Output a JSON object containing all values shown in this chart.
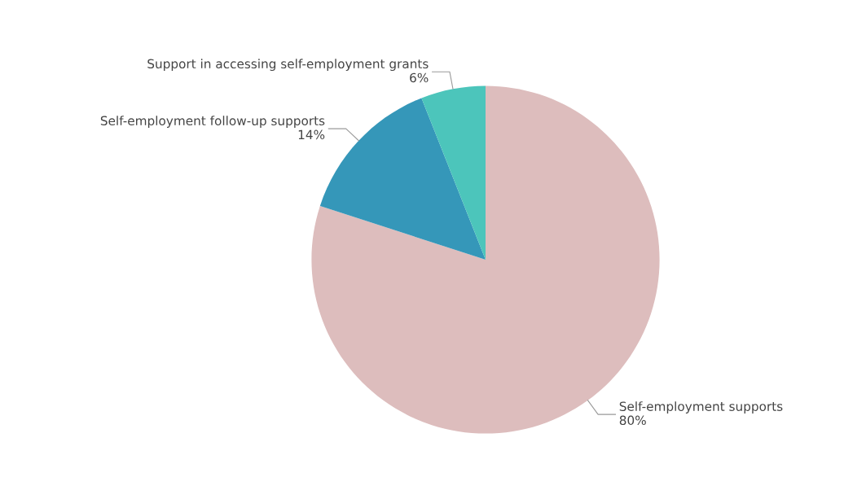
{
  "chart_data": {
    "type": "pie",
    "categories": [
      "Self-employment supports",
      "Self-employment follow-up supports",
      "Support in accessing self-employment grants"
    ],
    "values": [
      80,
      14,
      6
    ],
    "colors": [
      "#ddbdbd",
      "#3597b9",
      "#4cc5bb"
    ],
    "value_labels": [
      "80%",
      "14%",
      "6%"
    ],
    "legend": false
  }
}
